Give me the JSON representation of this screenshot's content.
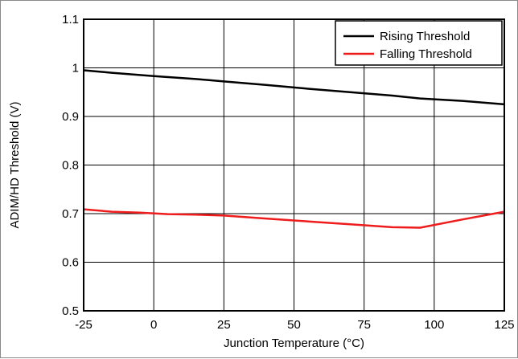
{
  "chart_data": {
    "type": "line",
    "xlabel": "Junction Temperature (°C)",
    "ylabel": "ADIM/HD Threshold (V)",
    "xlim": [
      -25,
      125
    ],
    "ylim": [
      0.5,
      1.1
    ],
    "x_ticks": [
      -25,
      0,
      25,
      50,
      75,
      100,
      125
    ],
    "y_ticks": [
      0.5,
      0.6,
      0.7,
      0.8,
      0.9,
      1,
      1.1
    ],
    "x_tick_labels": [
      "-25",
      "0",
      "25",
      "50",
      "75",
      "100",
      "125"
    ],
    "y_tick_labels": [
      "0.5",
      "0.6",
      "0.7",
      "0.8",
      "0.9",
      "1",
      "1.1"
    ],
    "grid": true,
    "legend_position": "top-right",
    "series": [
      {
        "name": "Rising Threshold",
        "color": "#000000",
        "x": [
          -25,
          -15,
          0,
          15,
          25,
          40,
          55,
          70,
          85,
          95,
          110,
          125
        ],
        "y": [
          0.995,
          0.99,
          0.983,
          0.977,
          0.972,
          0.965,
          0.957,
          0.95,
          0.943,
          0.937,
          0.932,
          0.925
        ]
      },
      {
        "name": "Falling Threshold",
        "color": "#ee1c1c",
        "x": [
          -25,
          -15,
          -5,
          5,
          15,
          25,
          40,
          55,
          70,
          85,
          95,
          110,
          125
        ],
        "y": [
          0.709,
          0.704,
          0.702,
          0.699,
          0.698,
          0.696,
          0.69,
          0.684,
          0.678,
          0.672,
          0.671,
          0.688,
          0.704
        ]
      }
    ]
  }
}
